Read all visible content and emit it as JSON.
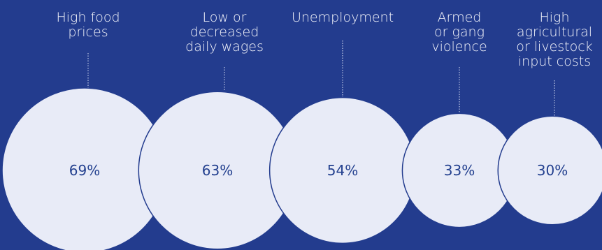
{
  "chart_data": {
    "type": "bubble",
    "unit": "%",
    "colors": {
      "background": "#233c8e",
      "bubble": "#e8ebf7",
      "value_text": "#23408f",
      "label_text": "#f4f5fb"
    },
    "categories": [
      "High food prices",
      "Low or decreased daily wages",
      "Unemployment",
      "Armed or gang violence",
      "High agricultural or livestock input costs"
    ],
    "values": [
      69,
      63,
      54,
      33,
      30
    ],
    "label_lines": [
      [
        "High food",
        "prices"
      ],
      [
        "Low or",
        "decreased",
        "daily wages"
      ],
      [
        "Unemployment"
      ],
      [
        "Armed",
        "or gang",
        "violence"
      ],
      [
        "High",
        "agricultural",
        "or livestock",
        "input costs"
      ]
    ],
    "value_labels": [
      "69%",
      "63%",
      "54%",
      "33%",
      "30%"
    ]
  }
}
